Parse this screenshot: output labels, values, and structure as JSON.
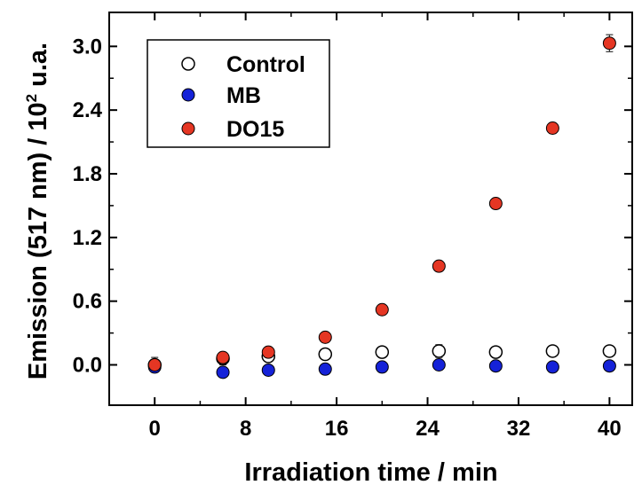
{
  "chart_data": {
    "type": "scatter",
    "xlabel": "Irradiation time / min",
    "ylabel_main": "Emission (517 nm) / 10",
    "ylabel_sup": "2",
    "ylabel_tail": " u.a.",
    "xlim": [
      -4,
      42
    ],
    "ylim": [
      -0.38,
      3.32
    ],
    "x_ticks": [
      0,
      8,
      16,
      24,
      32,
      40
    ],
    "x_tick_labels": [
      "0",
      "8",
      "16",
      "24",
      "32",
      "40"
    ],
    "y_ticks": [
      0.0,
      0.6,
      1.2,
      1.8,
      2.4,
      3.0
    ],
    "y_tick_labels": [
      "0.0",
      "0.6",
      "1.2",
      "1.8",
      "2.4",
      "3.0"
    ],
    "legend_position": "top-left",
    "series": [
      {
        "name": "Control",
        "marker": "open-circle",
        "color": "#ffffff",
        "x": [
          0,
          6,
          10,
          15,
          20,
          25,
          30,
          35,
          40
        ],
        "y": [
          0.0,
          0.06,
          0.08,
          0.1,
          0.12,
          0.13,
          0.12,
          0.13,
          0.13
        ],
        "err": [
          0.07,
          0.06,
          0.03,
          0.03,
          0.02,
          0.06,
          0.02,
          0.03,
          0.02
        ]
      },
      {
        "name": "MB",
        "marker": "filled-circle",
        "color": "#1522d8",
        "x": [
          0,
          6,
          10,
          15,
          20,
          25,
          30,
          35,
          40
        ],
        "y": [
          -0.02,
          -0.07,
          -0.05,
          -0.04,
          -0.02,
          0.0,
          -0.01,
          -0.02,
          -0.01
        ],
        "err": [
          0.02,
          0.02,
          0.02,
          0.02,
          0.02,
          0.02,
          0.02,
          0.02,
          0.02
        ]
      },
      {
        "name": "DO15",
        "marker": "filled-circle",
        "color": "#e53623",
        "x": [
          0,
          6,
          10,
          15,
          20,
          25,
          30,
          35,
          40
        ],
        "y": [
          0.0,
          0.07,
          0.12,
          0.26,
          0.52,
          0.93,
          1.52,
          2.23,
          3.03
        ],
        "err": [
          0.02,
          0.02,
          0.02,
          0.02,
          0.02,
          0.02,
          0.02,
          0.05,
          0.08
        ]
      }
    ]
  }
}
